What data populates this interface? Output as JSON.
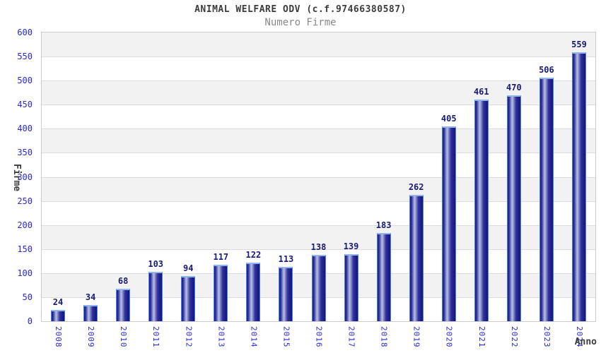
{
  "chart_data": {
    "type": "bar",
    "title": "ANIMAL WELFARE ODV (c.f.97466380587)",
    "subtitle": "Numero Firme",
    "xlabel": "Anno",
    "ylabel": "Firme",
    "categories": [
      "2008",
      "2009",
      "2010",
      "2011",
      "2012",
      "2013",
      "2014",
      "2015",
      "2016",
      "2017",
      "2018",
      "2019",
      "2020",
      "2021",
      "2022",
      "2023",
      "2024"
    ],
    "values": [
      24,
      34,
      68,
      103,
      94,
      117,
      122,
      113,
      138,
      139,
      183,
      262,
      405,
      461,
      470,
      506,
      559
    ],
    "ylim": [
      0,
      600
    ],
    "ytick_step": 50,
    "yticks": [
      0,
      50,
      100,
      150,
      200,
      250,
      300,
      350,
      400,
      450,
      500,
      550,
      600
    ],
    "grid": "horizontal alternating bands, gray/white, gridline each 50",
    "legend": "none"
  },
  "colors": {
    "tick_label": "#2929d6",
    "value_label": "#1a1a78",
    "title_text": "#3c3c3c",
    "subtitle_text": "#8a8a8a",
    "band_gray": "#f2f2f2",
    "band_white": "#ffffff",
    "grid_line": "#dcdcdc",
    "plot_border": "#cccccc",
    "bar_outline": "#4585e6",
    "bar_top_outline": "#8fb6ee",
    "bar_dark_edge": "#1c1c8a",
    "bar_mid": "#32329e",
    "bar_highlight": "#b9c0e8"
  }
}
